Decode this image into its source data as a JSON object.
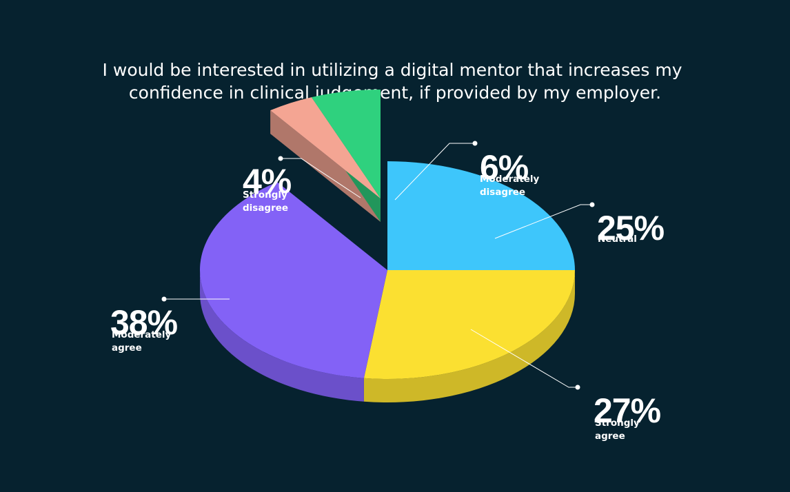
{
  "chart_data": {
    "type": "pie",
    "title": "I would be interested in utilizing a digital mentor that increases my confidence in clinical judgement, if provided by my employer.",
    "title_lines": [
      "I would be interested in utilizing a digital mentor that increases my",
      "confidence in clinical judgement, if provided by my employer."
    ],
    "unit": "%",
    "legend": "none",
    "slices": [
      {
        "name": "Neutral",
        "value": 25,
        "label": "25%",
        "desc_lines": [
          "Neutral"
        ],
        "color": "#3ec6fb",
        "exploded": false
      },
      {
        "name": "Strongly agree",
        "value": 27,
        "label": "27%",
        "desc_lines": [
          "Strongly",
          "agree"
        ],
        "color": "#fbe031",
        "exploded": false
      },
      {
        "name": "Moderately agree",
        "value": 38,
        "label": "38%",
        "desc_lines": [
          "Moderately",
          "agree"
        ],
        "color": "#8362f6",
        "exploded": false
      },
      {
        "name": "Strongly disagree",
        "value": 4,
        "label": "4%",
        "desc_lines": [
          "Strongly",
          "disagree"
        ],
        "color": "#f4a593",
        "exploded": true
      },
      {
        "name": "Moderately disagree",
        "value": 6,
        "label": "6%",
        "desc_lines": [
          "Moderately",
          "disagree"
        ],
        "color": "#2fd17e",
        "exploded": true
      }
    ]
  },
  "colors": {
    "background": "#06222f",
    "text": "#ffffff",
    "leader_line": "#ffffff"
  }
}
